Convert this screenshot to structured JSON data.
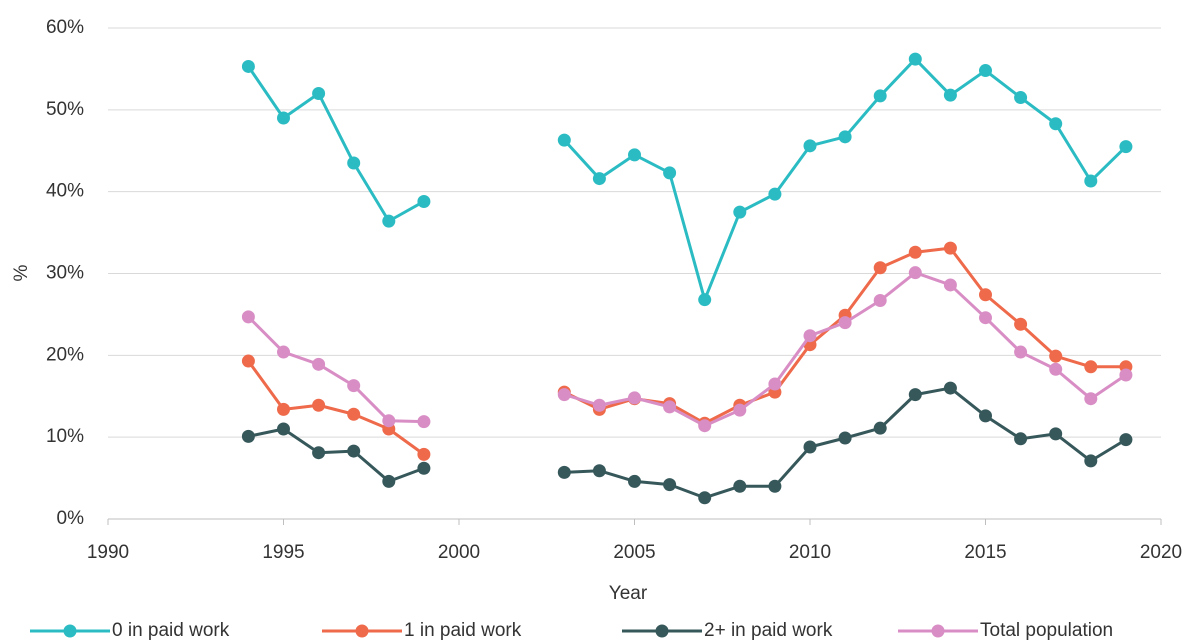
{
  "chart_data": {
    "type": "line",
    "x_label": "Year",
    "y_label": "%",
    "x": [
      1994,
      1995,
      1996,
      1997,
      1998,
      1999,
      2000,
      2001,
      2002,
      2003,
      2004,
      2005,
      2006,
      2007,
      2008,
      2009,
      2010,
      2011,
      2012,
      2013,
      2014,
      2015,
      2016,
      2017,
      2018,
      2019
    ],
    "series": [
      {
        "name": "0 in paid work",
        "color": "#2bbcc3",
        "values": [
          55.3,
          49,
          52,
          43.5,
          36.4,
          38.8,
          null,
          null,
          null,
          46.3,
          41.6,
          44.5,
          42.3,
          26.8,
          37.5,
          39.7,
          45.6,
          46.7,
          51.7,
          56.2,
          51.8,
          54.8,
          51.5,
          48.3,
          41.3,
          45.5
        ]
      },
      {
        "name": "1 in paid work",
        "color": "#ee6a4b",
        "values": [
          19.3,
          13.4,
          13.9,
          12.8,
          11,
          7.9,
          null,
          null,
          null,
          15.5,
          13.4,
          14.7,
          14.1,
          11.7,
          13.9,
          15.5,
          21.3,
          24.9,
          30.7,
          32.6,
          33.1,
          27.4,
          23.8,
          19.9,
          18.6,
          18.6
        ]
      },
      {
        "name": "2+ in paid work",
        "color": "#37585b",
        "values": [
          10.1,
          11,
          8.1,
          8.3,
          4.6,
          6.2,
          null,
          null,
          null,
          5.7,
          5.9,
          4.6,
          4.2,
          2.6,
          4,
          4,
          8.8,
          9.9,
          11.1,
          15.2,
          16,
          12.6,
          9.8,
          10.4,
          7.1,
          9.7
        ]
      },
      {
        "name": "Total population",
        "color": "#d88ec5",
        "values": [
          24.7,
          20.4,
          18.9,
          16.3,
          12,
          11.9,
          null,
          null,
          null,
          15.2,
          13.9,
          14.8,
          13.7,
          11.4,
          13.3,
          16.5,
          22.4,
          24,
          26.7,
          30.1,
          28.6,
          24.6,
          20.4,
          18.3,
          14.7,
          17.6
        ]
      }
    ],
    "xlim": [
      1990,
      2020
    ],
    "xticks": [
      1990,
      1995,
      2000,
      2005,
      2010,
      2015,
      2020
    ],
    "ylim": [
      0,
      60
    ],
    "yticks": [
      {
        "value": 0,
        "label": "0%"
      },
      {
        "value": 10,
        "label": "10%"
      },
      {
        "value": 20,
        "label": "20%"
      },
      {
        "value": 30,
        "label": "30%"
      },
      {
        "value": 40,
        "label": "40%"
      },
      {
        "value": 50,
        "label": "50%"
      },
      {
        "value": 60,
        "label": "60%"
      }
    ],
    "grid": true,
    "legend": "bottom"
  }
}
